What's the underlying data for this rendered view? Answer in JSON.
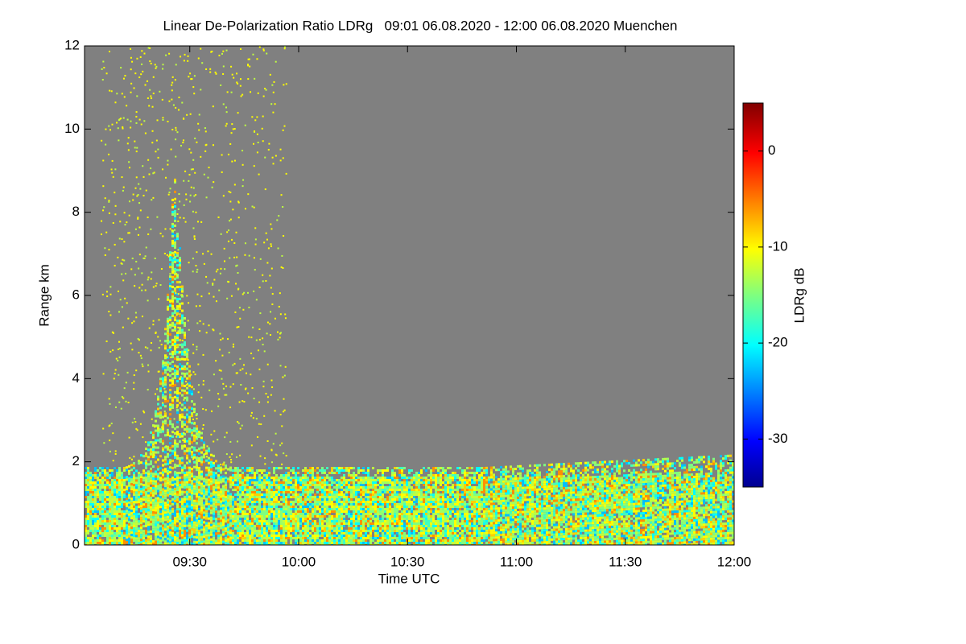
{
  "chart_data": {
    "type": "heatmap",
    "title": "Linear De-Polarization Ratio LDRg   09:01 06.08.2020 - 12:00 06.08.2020 Muenchen",
    "x_label": "Time UTC",
    "y_label": "Range km",
    "colorbar_label": "LDRg dB",
    "xlim": [
      541,
      720
    ],
    "xticks": [
      {
        "value": 570,
        "label": "09:30"
      },
      {
        "value": 600,
        "label": "10:00"
      },
      {
        "value": 630,
        "label": "10:30"
      },
      {
        "value": 660,
        "label": "11:00"
      },
      {
        "value": 690,
        "label": "11:30"
      },
      {
        "value": 720,
        "label": "12:00"
      }
    ],
    "ylim": [
      0,
      12
    ],
    "yticks": [
      0,
      2,
      4,
      6,
      8,
      10,
      12
    ],
    "clim": [
      -35,
      5
    ],
    "cticks": [
      0,
      -10,
      -20,
      -30
    ],
    "background": "#808080"
  }
}
